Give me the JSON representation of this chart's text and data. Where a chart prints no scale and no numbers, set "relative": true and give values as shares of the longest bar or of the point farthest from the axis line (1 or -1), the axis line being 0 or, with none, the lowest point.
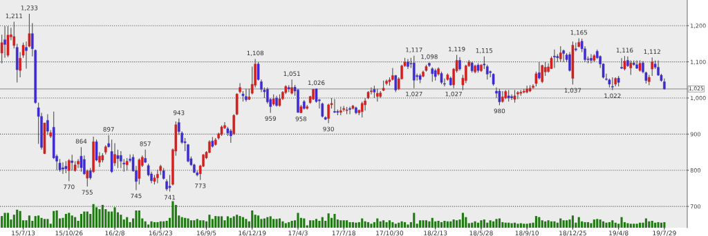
{
  "chart_data": [
    {
      "type": "candlestick",
      "grid": "y",
      "categories": [
        null,
        null,
        null,
        null,
        null,
        null,
        null,
        "15/7/13",
        null,
        null,
        null,
        null,
        null,
        null,
        null,
        null,
        null,
        null,
        null,
        null,
        null,
        null,
        "15/10/26",
        null,
        null,
        null,
        null,
        null,
        null,
        null,
        null,
        null,
        null,
        null,
        null,
        null,
        null,
        "16/2/8",
        null,
        null,
        null,
        null,
        null,
        null,
        null,
        null,
        null,
        null,
        null,
        null,
        null,
        null,
        "16/5/23",
        null,
        null,
        null,
        null,
        null,
        null,
        null,
        null,
        null,
        null,
        null,
        null,
        null,
        null,
        "16/9/5",
        null,
        null,
        null,
        null,
        null,
        null,
        null,
        null,
        null,
        null,
        null,
        null,
        null,
        null,
        "16/12/19",
        null,
        null,
        null,
        null,
        null,
        null,
        null,
        null,
        null,
        null,
        null,
        null,
        null,
        null,
        "17/4/3",
        null,
        null,
        null,
        null,
        null,
        null,
        null,
        null,
        null,
        null,
        null,
        null,
        null,
        null,
        "17/7/18",
        null,
        null,
        null,
        null,
        null,
        null,
        null,
        null,
        null,
        null,
        null,
        null,
        null,
        null,
        "17/10/30",
        null,
        null,
        null,
        null,
        null,
        null,
        null,
        null,
        null,
        null,
        null,
        null,
        null,
        null,
        "18/2/13",
        null,
        null,
        null,
        null,
        null,
        null,
        null,
        null,
        null,
        null,
        null,
        null,
        null,
        null,
        "18/5/28",
        null,
        null,
        null,
        null,
        null,
        null,
        null,
        null,
        null,
        null,
        null,
        null,
        null,
        null,
        "18/9/10",
        null,
        null,
        null,
        null,
        null,
        null,
        null,
        null,
        null,
        null,
        null,
        null,
        null,
        null,
        "18/12/25",
        null,
        null,
        null,
        null,
        null,
        null,
        null,
        null,
        null,
        null,
        null,
        null,
        null,
        null,
        "19/4/8",
        null,
        null,
        null,
        null,
        null,
        null,
        null,
        null,
        null,
        null,
        null,
        null,
        null,
        null,
        "19/7/29"
      ],
      "ohlc": [
        [
          1124,
          1175,
          1096,
          1153
        ],
        [
          1161,
          1199,
          1111,
          1148
        ],
        [
          1118,
          1199,
          1113,
          1174
        ],
        [
          1169,
          1194,
          1160,
          1175
        ],
        [
          1145,
          1211,
          1137,
          1170
        ],
        [
          1140,
          1150,
          1043,
          1078
        ],
        [
          1076,
          1127,
          1057,
          1110
        ],
        [
          1118,
          1153,
          1111,
          1146
        ],
        [
          1140,
          1156,
          1081,
          1131
        ],
        [
          1143,
          1233,
          1140,
          1178
        ],
        [
          1178,
          1207,
          1115,
          1136
        ],
        [
          1132,
          1134,
          984,
          987
        ],
        [
          973,
          987,
          873,
          949
        ],
        [
          949,
          959,
          857,
          863
        ],
        [
          846,
          931,
          845,
          931
        ],
        [
          938,
          955,
          898,
          908
        ],
        [
          894,
          911,
          889,
          904
        ],
        [
          919,
          962,
          831,
          834
        ],
        [
          839,
          844,
          800,
          825
        ],
        [
          820,
          831,
          796,
          801
        ],
        [
          807,
          822,
          790,
          803
        ],
        [
          811,
          825,
          792,
          804
        ],
        [
          799,
          831,
          770,
          827
        ],
        [
          826,
          843,
          799,
          821
        ],
        [
          799,
          825,
          796,
          815
        ],
        [
          817,
          831,
          806,
          825
        ],
        [
          839,
          864,
          796,
          807
        ],
        [
          830,
          841,
          787,
          790
        ],
        [
          778,
          802,
          755,
          798
        ],
        [
          799,
          806,
          774,
          779
        ],
        [
          796,
          893,
          793,
          879
        ],
        [
          879,
          885,
          825,
          828
        ],
        [
          822,
          850,
          809,
          839
        ],
        [
          828,
          847,
          822,
          841
        ],
        [
          850,
          869,
          844,
          865
        ],
        [
          874,
          897,
          863,
          865
        ],
        [
          852,
          885,
          793,
          796
        ],
        [
          820,
          875,
          812,
          844
        ],
        [
          841,
          857,
          806,
          832
        ],
        [
          841,
          853,
          806,
          825
        ],
        [
          820,
          831,
          796,
          817
        ],
        [
          815,
          834,
          799,
          825
        ],
        [
          831,
          844,
          822,
          827
        ],
        [
          836,
          844,
          796,
          798
        ],
        [
          799,
          812,
          745,
          769
        ],
        [
          777,
          833,
          761,
          829
        ],
        [
          813,
          841,
          809,
          836
        ],
        [
          833,
          857,
          820,
          822
        ],
        [
          813,
          818,
          783,
          787
        ],
        [
          790,
          796,
          764,
          771
        ],
        [
          769,
          787,
          761,
          779
        ],
        [
          779,
          802,
          764,
          789
        ],
        [
          799,
          815,
          787,
          811
        ],
        [
          799,
          806,
          774,
          777
        ],
        [
          769,
          775,
          743,
          748
        ],
        [
          756,
          787,
          741,
          752
        ],
        [
          761,
          860,
          758,
          857
        ],
        [
          853,
          935,
          840,
          926
        ],
        [
          932,
          943,
          898,
          907
        ],
        [
          903,
          908,
          873,
          877
        ],
        [
          879,
          889,
          853,
          876
        ],
        [
          871,
          873,
          822,
          825
        ],
        [
          832,
          838,
          812,
          815
        ],
        [
          815,
          818,
          792,
          794
        ],
        [
          793,
          799,
          783,
          787
        ],
        [
          790,
          815,
          773,
          812
        ],
        [
          811,
          845,
          809,
          843
        ],
        [
          834,
          853,
          831,
          850
        ],
        [
          849,
          883,
          847,
          879
        ],
        [
          881,
          892,
          863,
          866
        ],
        [
          871,
          889,
          868,
          884
        ],
        [
          889,
          904,
          885,
          901
        ],
        [
          899,
          924,
          895,
          920
        ],
        [
          917,
          933,
          914,
          924
        ],
        [
          915,
          920,
          895,
          903
        ],
        [
          909,
          914,
          876,
          895
        ],
        [
          901,
          955,
          898,
          952
        ],
        [
          955,
          1013,
          952,
          1011
        ],
        [
          1017,
          1041,
          1013,
          1029
        ],
        [
          1011,
          1019,
          990,
          1006
        ],
        [
          1004,
          1025,
          990,
          995
        ],
        [
          996,
          1025,
          994,
          1003
        ],
        [
          1013,
          1087,
          1010,
          1038
        ],
        [
          1035,
          1108,
          1029,
          1094
        ],
        [
          1094,
          1099,
          1048,
          1051
        ],
        [
          1045,
          1051,
          1016,
          1024
        ],
        [
          1022,
          1029,
          1000,
          1017
        ],
        [
          1024,
          1029,
          984,
          989
        ],
        [
          996,
          1000,
          959,
          976
        ],
        [
          983,
          1010,
          979,
          998
        ],
        [
          1000,
          1006,
          976,
          979
        ],
        [
          979,
          1010,
          976,
          998
        ],
        [
          998,
          1019,
          994,
          1016
        ],
        [
          1015,
          1035,
          1011,
          1032
        ],
        [
          1029,
          1035,
          1016,
          1025
        ],
        [
          1013,
          1051,
          1010,
          1029
        ],
        [
          1030,
          1036,
          1006,
          1019
        ],
        [
          1022,
          1025,
          959,
          960
        ],
        [
          959,
          981,
          958,
          976
        ],
        [
          990,
          994,
          968,
          971
        ],
        [
          971,
          981,
          968,
          976
        ],
        [
          987,
          1006,
          984,
          1004
        ],
        [
          997,
          1025,
          994,
          1024
        ],
        [
          1025,
          1026,
          987,
          990
        ],
        [
          995,
          997,
          971,
          992
        ],
        [
          984,
          987,
          946,
          949
        ],
        [
          946,
          949,
          939,
          941
        ],
        [
          943,
          984,
          930,
          981
        ],
        [
          981,
          1000,
          971,
          985
        ],
        [
          963,
          997,
          959,
          960
        ],
        [
          963,
          968,
          952,
          960
        ],
        [
          960,
          976,
          952,
          965
        ],
        [
          968,
          978,
          962,
          971
        ],
        [
          965,
          975,
          955,
          967
        ],
        [
          971,
          976,
          955,
          968
        ],
        [
          971,
          981,
          968,
          978
        ],
        [
          973,
          976,
          955,
          959
        ],
        [
          959,
          968,
          952,
          966
        ],
        [
          962,
          990,
          946,
          985
        ],
        [
          981,
          1000,
          965,
          992
        ],
        [
          1000,
          1019,
          997,
          1016
        ],
        [
          1017,
          1029,
          1010,
          1020
        ],
        [
          1024,
          1034,
          1000,
          1016
        ],
        [
          1004,
          1025,
          990,
          1013
        ],
        [
          1004,
          1019,
          1000,
          1014
        ],
        [
          1021,
          1048,
          1019,
          1027
        ],
        [
          1040,
          1051,
          1035,
          1047
        ],
        [
          1045,
          1057,
          1034,
          1050
        ],
        [
          1051,
          1083,
          1048,
          1062
        ],
        [
          1062,
          1064,
          1016,
          1022
        ],
        [
          1025,
          1057,
          1022,
          1053
        ],
        [
          1053,
          1092,
          1051,
          1089
        ],
        [
          1089,
          1111,
          1086,
          1099
        ],
        [
          1100,
          1108,
          1080,
          1087
        ],
        [
          1096,
          1111,
          1083,
          1094
        ],
        [
          1097,
          1117,
          1027,
          1049
        ],
        [
          1062,
          1067,
          1048,
          1059
        ],
        [
          1062,
          1067,
          1041,
          1051
        ],
        [
          1060,
          1076,
          1057,
          1072
        ],
        [
          1076,
          1092,
          1073,
          1087
        ],
        [
          1096,
          1098,
          1086,
          1090
        ],
        [
          1081,
          1085,
          1045,
          1067
        ],
        [
          1076,
          1081,
          1048,
          1059
        ],
        [
          1066,
          1085,
          1062,
          1081
        ],
        [
          1068,
          1073,
          1038,
          1043
        ],
        [
          1040,
          1054,
          1032,
          1038
        ],
        [
          1051,
          1068,
          1048,
          1064
        ],
        [
          1055,
          1059,
          1034,
          1036
        ],
        [
          1036,
          1083,
          1027,
          1080
        ],
        [
          1075,
          1119,
          1070,
          1104
        ],
        [
          1104,
          1113,
          1076,
          1080
        ],
        [
          1036,
          1064,
          1022,
          1055
        ],
        [
          1048,
          1092,
          1041,
          1089
        ],
        [
          1089,
          1105,
          1086,
          1100
        ],
        [
          1097,
          1100,
          1070,
          1075
        ],
        [
          1072,
          1092,
          1068,
          1089
        ],
        [
          1091,
          1096,
          1070,
          1076
        ],
        [
          1075,
          1094,
          1072,
          1091
        ],
        [
          1094,
          1115,
          1080,
          1091
        ],
        [
          1087,
          1092,
          1051,
          1066
        ],
        [
          1073,
          1076,
          1057,
          1070
        ],
        [
          1066,
          1068,
          1034,
          1038
        ],
        [
          1019,
          1029,
          1000,
          1013
        ],
        [
          1019,
          1025,
          980,
          989
        ],
        [
          990,
          1019,
          987,
          1003
        ],
        [
          1000,
          1022,
          997,
          1018
        ],
        [
          1006,
          1022,
          990,
          1000
        ],
        [
          1004,
          1010,
          994,
          1000
        ],
        [
          996,
          1022,
          987,
          1006
        ],
        [
          1011,
          1019,
          997,
          1015
        ],
        [
          1013,
          1022,
          1006,
          1016
        ],
        [
          1016,
          1025,
          1013,
          1019
        ],
        [
          1016,
          1034,
          1013,
          1025
        ],
        [
          1019,
          1035,
          1016,
          1027
        ],
        [
          1029,
          1038,
          1025,
          1033
        ],
        [
          1040,
          1073,
          1032,
          1067
        ],
        [
          1070,
          1099,
          1051,
          1055
        ],
        [
          1045,
          1092,
          1041,
          1090
        ],
        [
          1072,
          1099,
          1061,
          1085
        ],
        [
          1073,
          1096,
          1070,
          1086
        ],
        [
          1081,
          1115,
          1080,
          1110
        ],
        [
          1116,
          1134,
          1083,
          1113
        ],
        [
          1115,
          1121,
          1099,
          1111
        ],
        [
          1108,
          1143,
          1099,
          1125
        ],
        [
          1131,
          1134,
          1099,
          1123
        ],
        [
          1119,
          1124,
          1099,
          1106
        ],
        [
          1120,
          1127,
          1073,
          1076
        ],
        [
          1054,
          1156,
          1037,
          1146
        ],
        [
          1136,
          1153,
          1129,
          1133
        ],
        [
          1142,
          1165,
          1140,
          1154
        ],
        [
          1157,
          1164,
          1127,
          1136
        ],
        [
          1136,
          1143,
          1099,
          1106
        ],
        [
          1108,
          1115,
          1096,
          1106
        ],
        [
          1110,
          1121,
          1096,
          1104
        ],
        [
          1104,
          1121,
          1100,
          1117
        ],
        [
          1129,
          1134,
          1108,
          1111
        ],
        [
          1115,
          1118,
          1083,
          1094
        ],
        [
          1094,
          1096,
          1054,
          1057
        ],
        [
          1053,
          1067,
          1048,
          1051
        ],
        [
          1050,
          1054,
          1029,
          1038
        ],
        [
          1032,
          1057,
          1022,
          1030
        ],
        [
          1038,
          1057,
          1032,
          1054
        ],
        [
          1055,
          1061,
          1032,
          1043
        ],
        [
          1085,
          1110,
          1080,
          1082
        ],
        [
          1080,
          1116,
          1076,
          1102
        ],
        [
          1104,
          1115,
          1086,
          1089
        ],
        [
          1083,
          1104,
          1064,
          1097
        ],
        [
          1097,
          1104,
          1089,
          1092
        ],
        [
          1092,
          1104,
          1080,
          1082
        ],
        [
          1076,
          1104,
          1073,
          1096
        ],
        [
          1097,
          1102,
          1068,
          1072
        ],
        [
          1070,
          1073,
          1040,
          1048
        ],
        [
          1045,
          1064,
          1035,
          1057
        ],
        [
          1080,
          1112,
          1061,
          1100
        ],
        [
          1094,
          1104,
          1080,
          1085
        ],
        [
          1085,
          1104,
          1061,
          1063
        ],
        [
          1063,
          1067,
          1045,
          1048
        ],
        [
          1045,
          1054,
          1023,
          1025
        ]
      ],
      "ylim": [
        641,
        1271
      ],
      "yticks": [
        700,
        800,
        900,
        {
          "value": 1000,
          "label": "1,000"
        },
        {
          "value": 1100,
          "label": "1,100"
        },
        {
          "value": 1200,
          "label": "1,200"
        }
      ],
      "ref_lines": [
        {
          "axis": "y",
          "value": 1025,
          "label": "1,025",
          "color": "#9a9a9a",
          "line_style": "solid"
        }
      ],
      "annotations": [
        {
          "text": "1,211",
          "y": 1211
        },
        {
          "text": "1,233",
          "y": 1233
        },
        {
          "text": "770",
          "y": 770
        },
        {
          "text": "864",
          "y": 864
        },
        {
          "text": "755",
          "y": 755
        },
        {
          "text": "897",
          "y": 897
        },
        {
          "text": "745",
          "y": 745
        },
        {
          "text": "857",
          "y": 857
        },
        {
          "text": "741",
          "y": 741
        },
        {
          "text": "943",
          "y": 943
        },
        {
          "text": "773",
          "y": 773
        },
        {
          "text": "1,108",
          "y": 1108
        },
        {
          "text": "959",
          "y": 959
        },
        {
          "text": "1,051",
          "y": 1051
        },
        {
          "text": "958",
          "y": 958
        },
        {
          "text": "1,026",
          "y": 1026
        },
        {
          "text": "930",
          "y": 930
        },
        {
          "text": "1,117",
          "y": 1117
        },
        {
          "text": "1,027",
          "y": 1027
        },
        {
          "text": "1,098",
          "y": 1098
        },
        {
          "text": "1,027",
          "y": 1027
        },
        {
          "text": "1,119",
          "y": 1119
        },
        {
          "text": "1,115",
          "y": 1115
        },
        {
          "text": "980",
          "y": 980
        },
        {
          "text": "1,037",
          "y": 1037
        },
        {
          "text": "1,165",
          "y": 1165
        },
        {
          "text": "1,022",
          "y": 1022
        },
        {
          "text": "1,116",
          "y": 1116
        },
        {
          "text": "1,112",
          "y": 1112
        }
      ]
    },
    {
      "type": "bar",
      "relative": true,
      "color": "#1f7a12",
      "categories": [
        null,
        null,
        null,
        null,
        null,
        null,
        null,
        null,
        null,
        null,
        null,
        null,
        null,
        null,
        null,
        null,
        null,
        null,
        null,
        null,
        null,
        null,
        null,
        null,
        null,
        null,
        null,
        null,
        null,
        null,
        null,
        null,
        null,
        null,
        null,
        null,
        null,
        null,
        null,
        null,
        null,
        null,
        null,
        null,
        null,
        null,
        null,
        null,
        null,
        null,
        null,
        null,
        null,
        null,
        null,
        null,
        null,
        null,
        null,
        null,
        null,
        null,
        null,
        null,
        null,
        null,
        null,
        null,
        null,
        null,
        null,
        null,
        null,
        null,
        null,
        null,
        null,
        null,
        null,
        null,
        null,
        null,
        null,
        null,
        null,
        null,
        null,
        null,
        null,
        null,
        null,
        null,
        null,
        null,
        null,
        null,
        null,
        null,
        null,
        null,
        null,
        null,
        null,
        null,
        null,
        null,
        null,
        null,
        null,
        null,
        null,
        null,
        null,
        null,
        null,
        null,
        null,
        null,
        null,
        null,
        null,
        null,
        null,
        null,
        null,
        null,
        null,
        null,
        null,
        null,
        null,
        null,
        null,
        null,
        null,
        null,
        null,
        null,
        null,
        null,
        null,
        null,
        null,
        null,
        null,
        null,
        null,
        null,
        null,
        null,
        null,
        null,
        null,
        null,
        null,
        null,
        null,
        null,
        null,
        null,
        null,
        null,
        null,
        null,
        null,
        null,
        null,
        null,
        null,
        null,
        null,
        null,
        null,
        null,
        null,
        null,
        null,
        null,
        null,
        null,
        null,
        null,
        null,
        null,
        null,
        null,
        null,
        null,
        null,
        null,
        null,
        null,
        null,
        null,
        null,
        null,
        null,
        null,
        null,
        null,
        null,
        null,
        null,
        null,
        null,
        null,
        null,
        null,
        null,
        null,
        null,
        null,
        null,
        null,
        null,
        null,
        null,
        null
      ],
      "values": [
        0.44,
        0.56,
        0.56,
        0.31,
        0.49,
        0.68,
        0.63,
        0.28,
        0.28,
        0.46,
        0.26,
        0.44,
        0.46,
        0.37,
        0.33,
        0.33,
        0.15,
        0.63,
        0.65,
        0.35,
        0.37,
        0.52,
        0.56,
        0.46,
        0.4,
        0.26,
        0.52,
        0.61,
        0.61,
        0.52,
        0.89,
        0.77,
        0.7,
        0.86,
        0.7,
        0.61,
        0.61,
        0.77,
        0.58,
        0.49,
        0.31,
        0.4,
        0.21,
        0.35,
        0.65,
        0.65,
        0.35,
        0.24,
        0.12,
        0.24,
        0.21,
        0.21,
        0.24,
        0.24,
        0.26,
        0.37,
        1,
        0.86,
        0.46,
        0.4,
        0.37,
        0.35,
        0.28,
        0.28,
        0.33,
        0.28,
        0.28,
        0.24,
        0.49,
        0.33,
        0.44,
        0.43,
        0.43,
        0.28,
        0.43,
        0.37,
        0.43,
        0.49,
        0.44,
        0.4,
        0.33,
        0.24,
        0.65,
        0.49,
        0.46,
        0.33,
        0.35,
        0.4,
        0.43,
        0.33,
        0.33,
        0.35,
        0.24,
        0.17,
        0.21,
        0.26,
        0.28,
        0.56,
        0.37,
        0.35,
        0.09,
        0.28,
        0.28,
        0.33,
        0.26,
        0.4,
        0.26,
        0.54,
        0.37,
        0.52,
        0.31,
        0.28,
        0.28,
        0.28,
        0.21,
        0.21,
        0.19,
        0.21,
        0.35,
        0.24,
        0.21,
        0.15,
        0.21,
        0.35,
        0.24,
        0.28,
        0.21,
        0.28,
        0.21,
        0.15,
        0.19,
        0.24,
        0.21,
        0.12,
        0.21,
        0.56,
        0.15,
        0.28,
        0.28,
        0.28,
        0.24,
        0.37,
        0.24,
        0.26,
        0.21,
        0.26,
        0.24,
        0.24,
        0.31,
        0.28,
        0.31,
        0.56,
        0.4,
        0.17,
        0.19,
        0.24,
        0.19,
        0.28,
        0.31,
        0.19,
        0.28,
        0.24,
        0.33,
        0.35,
        0.21,
        0.19,
        0.19,
        0.17,
        0.19,
        0.15,
        0.17,
        0.15,
        0.15,
        0.17,
        0.19,
        0.44,
        0.4,
        0.28,
        0.24,
        0.28,
        0.24,
        0.24,
        0.19,
        0.35,
        0.28,
        0.28,
        0.31,
        0.46,
        0.19,
        0.4,
        0.24,
        0.21,
        0.21,
        0.17,
        0.31,
        0.33,
        0.31,
        0.24,
        0.19,
        0.21,
        0.28,
        0.19,
        0.15,
        0.4,
        0.21,
        0.17,
        0.15,
        0.15,
        0.15,
        0.19,
        0.19,
        0.35,
        0.24,
        0.26,
        0.19,
        0.21,
        0.19,
        0.21
      ]
    }
  ]
}
